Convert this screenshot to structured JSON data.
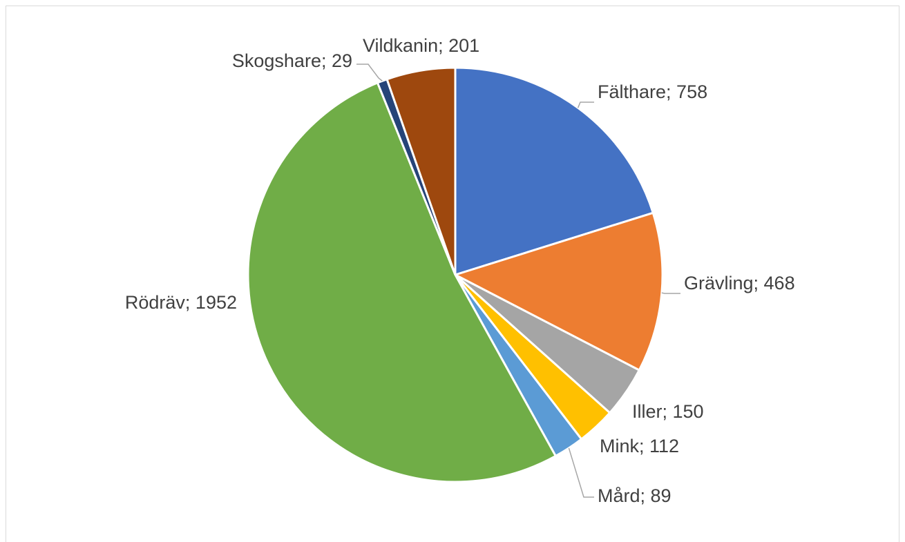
{
  "chart_data": {
    "type": "pie",
    "values": [
      758,
      468,
      150,
      112,
      89,
      1952,
      29,
      201
    ],
    "value_labels": [
      "Fälthare; 758",
      "Grävling; 468",
      "Iller; 150",
      "Mink; 112",
      "Mård; 89",
      "Rödräv; 1952",
      "Skogshare; 29",
      "Vildkanin; 201"
    ],
    "colors": [
      "#4472c4",
      "#ed7d31",
      "#a5a5a5",
      "#ffc000",
      "#5b9bd5",
      "#70ad47",
      "#264478",
      "#9e480e"
    ]
  }
}
